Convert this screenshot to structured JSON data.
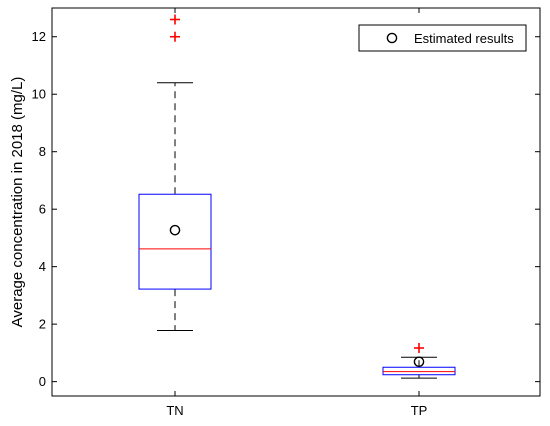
{
  "chart_data": {
    "type": "box",
    "title": "",
    "xlabel": "",
    "ylabel": "Average concentration in 2018 (mg/L)",
    "ylim": [
      -0.5,
      13
    ],
    "yticks": [
      0,
      2,
      4,
      6,
      8,
      10,
      12
    ],
    "categories": [
      "TN",
      "TP"
    ],
    "boxes": [
      {
        "category": "TN",
        "whisker_low": 1.78,
        "q1": 3.22,
        "median": 4.62,
        "q3": 6.52,
        "whisker_high": 10.4,
        "outliers": [
          12.0,
          12.6
        ],
        "estimated": 5.27
      },
      {
        "category": "TP",
        "whisker_low": 0.12,
        "q1": 0.24,
        "median": 0.35,
        "q3": 0.5,
        "whisker_high": 0.85,
        "outliers": [
          1.17
        ],
        "estimated": 0.69
      }
    ],
    "legend": {
      "position": "top-right",
      "entries": [
        {
          "label": "Estimated results",
          "marker": "circle"
        }
      ]
    },
    "colors": {
      "box": "#0000ff",
      "median": "#ff0000",
      "whisker": "#000000",
      "outlier": "#ff0000",
      "estimated": "#000000"
    },
    "grid": false
  }
}
